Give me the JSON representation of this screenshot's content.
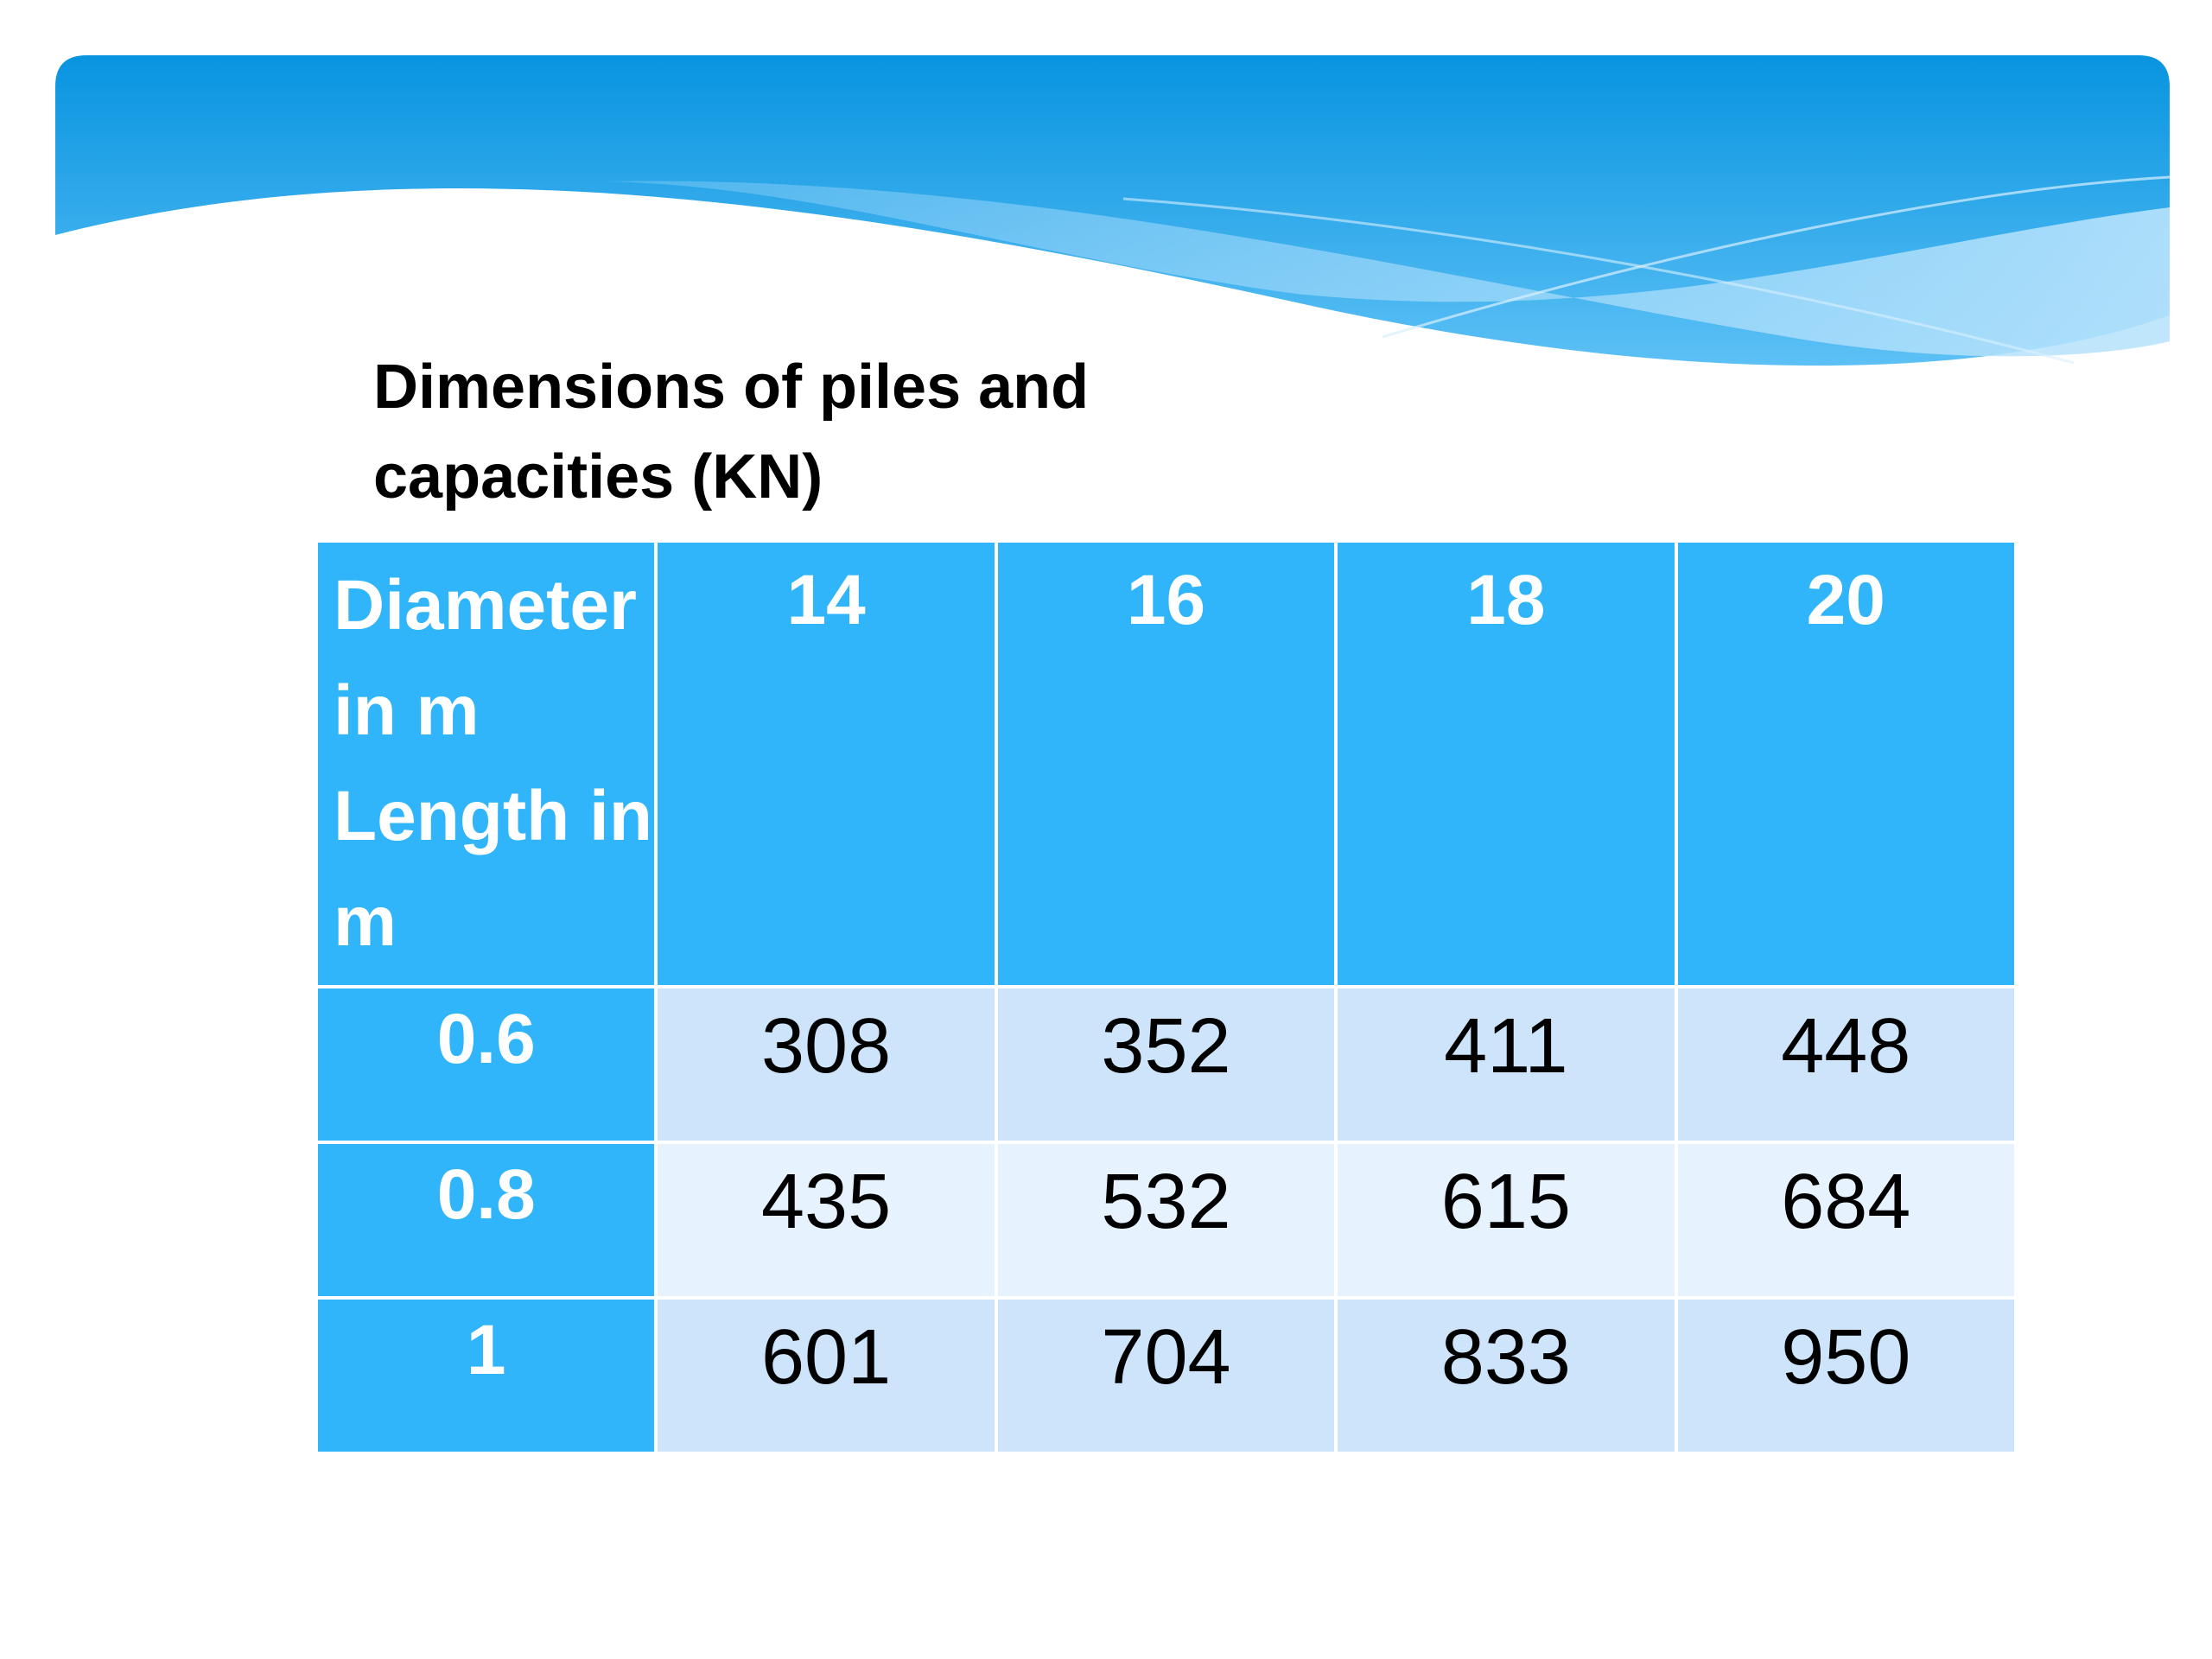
{
  "title": "Dimensions of piles and capacities (KN)",
  "table": {
    "corner": [
      "Diameter in m",
      "Length in m"
    ],
    "columns": [
      "14",
      "16",
      "18",
      "20"
    ],
    "rows": [
      {
        "label": "0.6",
        "values": [
          308,
          352,
          411,
          448
        ]
      },
      {
        "label": "0.8",
        "values": [
          435,
          532,
          615,
          684
        ]
      },
      {
        "label": "1",
        "values": [
          601,
          704,
          833,
          950
        ]
      }
    ]
  }
}
